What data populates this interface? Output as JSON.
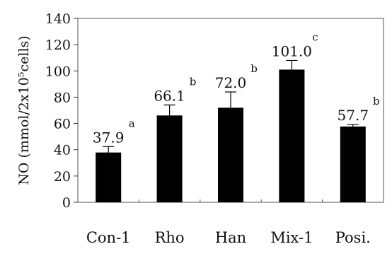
{
  "chart_data": {
    "type": "bar",
    "categories": [
      "Con-1",
      "Rho",
      "Han",
      "Mix-1",
      "Posi."
    ],
    "values": [
      37.9,
      66.1,
      72.0,
      101.0,
      57.7
    ],
    "value_labels": [
      "37.9",
      "66.1",
      "72.0",
      "101.0",
      "57.7"
    ],
    "errors": [
      4.5,
      8,
      12,
      7,
      1.5
    ],
    "significance": [
      "a",
      "b",
      "b",
      "c",
      "b"
    ],
    "ylabel": "NO (mmol/2x10⁵cells)",
    "xlabel": "",
    "ylim": [
      0,
      140
    ],
    "yticks": [
      "0",
      "20",
      "40",
      "60",
      "80",
      "100",
      "120",
      "140"
    ],
    "bar_color": "#000000",
    "grid": false
  }
}
